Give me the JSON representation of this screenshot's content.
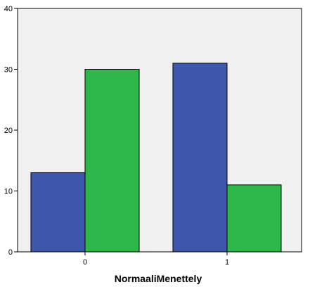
{
  "chart_data": {
    "type": "bar",
    "title": "",
    "xlabel": "NormaaliMenettely",
    "ylabel": "",
    "categories": [
      "0",
      "1"
    ],
    "series": [
      {
        "values": [
          13,
          31
        ],
        "color": "#3f56ad"
      },
      {
        "values": [
          30,
          11
        ],
        "color": "#2eb84a"
      }
    ],
    "ylim": [
      0,
      40
    ],
    "yticks": [
      0,
      10,
      20,
      30,
      40
    ],
    "plot_background": "#f0f0f0",
    "bar_outline": "#000000",
    "grid": false,
    "legend": "none"
  }
}
